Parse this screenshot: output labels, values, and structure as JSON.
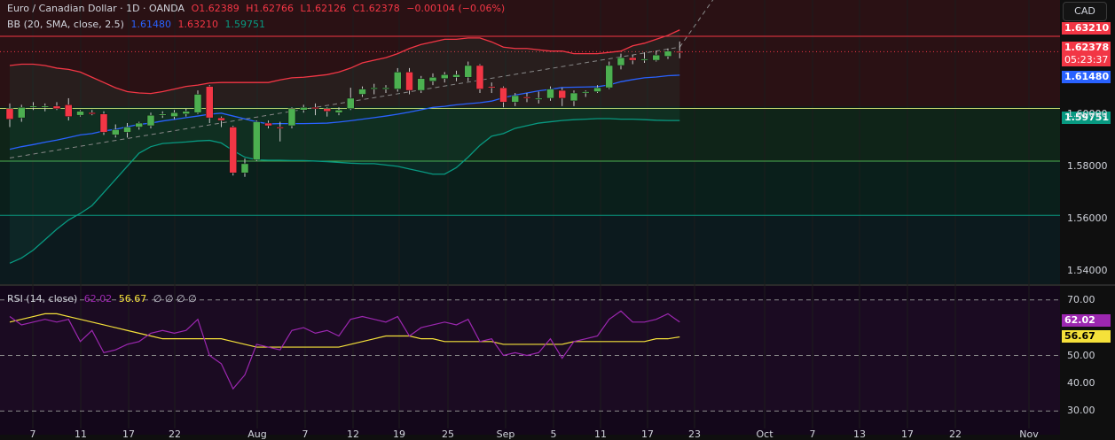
{
  "header": {
    "symbol": "Euro / Canadian Dollar · 1D · OANDA",
    "open": "O1.62389",
    "high": "H1.62766",
    "low": "L1.62126",
    "close": "C1.62378",
    "change": "−0.00104 (−0.06%)",
    "bb_label": "BB (20, SMA, close, 2.5)",
    "bb_basis": "1.61480",
    "bb_upper": "1.63210",
    "bb_lower": "1.59751",
    "rsi_label": "RSI (14, close)",
    "rsi_value": "62.02",
    "rsi_ma": "56.67",
    "rsi_extra": "∅ ∅ ∅ ∅"
  },
  "currency_button": "CAD",
  "price_tags": {
    "upper": "1.63210",
    "last": "1.62378",
    "countdown": "05:23:37",
    "basis": "1.61480",
    "lower": "1.59751",
    "rsi": "62.02",
    "rsi_ma": "56.67"
  },
  "colors": {
    "up": "#4caf50",
    "down": "#f23645",
    "bb_basis": "#2962ff",
    "bb_upper": "#f23645",
    "bb_lower": "#089981",
    "rsi": "#9c27b0",
    "rsi_ma": "#f5e13a"
  },
  "chart_data": [
    {
      "type": "candlestick",
      "title": "Euro / Canadian Dollar · 1D · OANDA",
      "y_ticks": [
        "1.60000",
        "1.58000",
        "1.56000",
        "1.54000"
      ],
      "ylim": [
        1.535,
        1.6435
      ],
      "x_labels": [
        "7",
        "11",
        "17",
        "22",
        "Aug",
        "7",
        "12",
        "19",
        "25",
        "Sep",
        "5",
        "11",
        "17",
        "23",
        "Oct",
        "7",
        "13",
        "17",
        "22",
        "Nov"
      ],
      "horizontal_lines": [
        1.6021,
        1.582,
        1.5613
      ],
      "candles": [
        {
          "o": 1.602,
          "h": 1.604,
          "l": 1.595,
          "c": 1.598
        },
        {
          "o": 1.5985,
          "h": 1.6035,
          "l": 1.597,
          "c": 1.6025
        },
        {
          "o": 1.6025,
          "h": 1.6045,
          "l": 1.6015,
          "c": 1.603
        },
        {
          "o": 1.6025,
          "h": 1.604,
          "l": 1.601,
          "c": 1.603
        },
        {
          "o": 1.603,
          "h": 1.6045,
          "l": 1.6015,
          "c": 1.602
        },
        {
          "o": 1.6035,
          "h": 1.606,
          "l": 1.5975,
          "c": 1.599
        },
        {
          "o": 1.5995,
          "h": 1.6015,
          "l": 1.599,
          "c": 1.601
        },
        {
          "o": 1.6005,
          "h": 1.6015,
          "l": 1.5995,
          "c": 1.6
        },
        {
          "o": 1.6,
          "h": 1.601,
          "l": 1.592,
          "c": 1.593
        },
        {
          "o": 1.592,
          "h": 1.596,
          "l": 1.591,
          "c": 1.594
        },
        {
          "o": 1.593,
          "h": 1.5965,
          "l": 1.591,
          "c": 1.595
        },
        {
          "o": 1.595,
          "h": 1.597,
          "l": 1.594,
          "c": 1.5965
        },
        {
          "o": 1.5955,
          "h": 1.6005,
          "l": 1.5945,
          "c": 1.5995
        },
        {
          "o": 1.5995,
          "h": 1.601,
          "l": 1.5985,
          "c": 1.6
        },
        {
          "o": 1.599,
          "h": 1.6015,
          "l": 1.598,
          "c": 1.6005
        },
        {
          "o": 1.6,
          "h": 1.602,
          "l": 1.599,
          "c": 1.601
        },
        {
          "o": 1.6005,
          "h": 1.609,
          "l": 1.6,
          "c": 1.6075
        },
        {
          "o": 1.6105,
          "h": 1.611,
          "l": 1.5965,
          "c": 1.5985
        },
        {
          "o": 1.5985,
          "h": 1.599,
          "l": 1.595,
          "c": 1.5975
        },
        {
          "o": 1.595,
          "h": 1.5955,
          "l": 1.5765,
          "c": 1.5775
        },
        {
          "o": 1.5775,
          "h": 1.583,
          "l": 1.576,
          "c": 1.581
        },
        {
          "o": 1.5825,
          "h": 1.5975,
          "l": 1.582,
          "c": 1.597
        },
        {
          "o": 1.5965,
          "h": 1.5975,
          "l": 1.5945,
          "c": 1.5955
        },
        {
          "o": 1.595,
          "h": 1.597,
          "l": 1.5895,
          "c": 1.5945
        },
        {
          "o": 1.5955,
          "h": 1.6025,
          "l": 1.5945,
          "c": 1.602
        },
        {
          "o": 1.6015,
          "h": 1.6035,
          "l": 1.6005,
          "c": 1.6025
        },
        {
          "o": 1.6025,
          "h": 1.604,
          "l": 1.5995,
          "c": 1.602
        },
        {
          "o": 1.602,
          "h": 1.6025,
          "l": 1.599,
          "c": 1.601
        },
        {
          "o": 1.6005,
          "h": 1.6025,
          "l": 1.5995,
          "c": 1.6015
        },
        {
          "o": 1.602,
          "h": 1.61,
          "l": 1.6015,
          "c": 1.606
        },
        {
          "o": 1.6075,
          "h": 1.6105,
          "l": 1.6065,
          "c": 1.6095
        },
        {
          "o": 1.6095,
          "h": 1.6115,
          "l": 1.6075,
          "c": 1.61
        },
        {
          "o": 1.6095,
          "h": 1.611,
          "l": 1.608,
          "c": 1.61
        },
        {
          "o": 1.6095,
          "h": 1.6175,
          "l": 1.6085,
          "c": 1.616
        },
        {
          "o": 1.616,
          "h": 1.6175,
          "l": 1.6075,
          "c": 1.609
        },
        {
          "o": 1.609,
          "h": 1.6145,
          "l": 1.608,
          "c": 1.6135
        },
        {
          "o": 1.6125,
          "h": 1.6155,
          "l": 1.611,
          "c": 1.614
        },
        {
          "o": 1.6135,
          "h": 1.616,
          "l": 1.612,
          "c": 1.615
        },
        {
          "o": 1.614,
          "h": 1.6165,
          "l": 1.6125,
          "c": 1.615
        },
        {
          "o": 1.614,
          "h": 1.62,
          "l": 1.6125,
          "c": 1.6185
        },
        {
          "o": 1.6185,
          "h": 1.619,
          "l": 1.608,
          "c": 1.6095
        },
        {
          "o": 1.6105,
          "h": 1.612,
          "l": 1.608,
          "c": 1.61
        },
        {
          "o": 1.61,
          "h": 1.6105,
          "l": 1.6025,
          "c": 1.6045
        },
        {
          "o": 1.6045,
          "h": 1.608,
          "l": 1.603,
          "c": 1.607
        },
        {
          "o": 1.6065,
          "h": 1.608,
          "l": 1.6045,
          "c": 1.606
        },
        {
          "o": 1.6055,
          "h": 1.6085,
          "l": 1.604,
          "c": 1.606
        },
        {
          "o": 1.606,
          "h": 1.6105,
          "l": 1.605,
          "c": 1.6095
        },
        {
          "o": 1.609,
          "h": 1.61,
          "l": 1.603,
          "c": 1.606
        },
        {
          "o": 1.605,
          "h": 1.609,
          "l": 1.603,
          "c": 1.608
        },
        {
          "o": 1.608,
          "h": 1.609,
          "l": 1.6065,
          "c": 1.6085
        },
        {
          "o": 1.6085,
          "h": 1.611,
          "l": 1.608,
          "c": 1.61
        },
        {
          "o": 1.61,
          "h": 1.62,
          "l": 1.6095,
          "c": 1.6185
        },
        {
          "o": 1.6185,
          "h": 1.623,
          "l": 1.617,
          "c": 1.6215
        },
        {
          "o": 1.6215,
          "h": 1.6225,
          "l": 1.619,
          "c": 1.6205
        },
        {
          "o": 1.6205,
          "h": 1.6235,
          "l": 1.6195,
          "c": 1.621
        },
        {
          "o": 1.6205,
          "h": 1.624,
          "l": 1.62,
          "c": 1.6225
        },
        {
          "o": 1.622,
          "h": 1.625,
          "l": 1.621,
          "c": 1.624
        },
        {
          "o": 1.62389,
          "h": 1.62766,
          "l": 1.62126,
          "c": 1.62378
        }
      ],
      "series": [
        {
          "name": "Basis",
          "values": [
            1.5865,
            1.5875,
            1.5883,
            1.5892,
            1.59,
            1.591,
            1.592,
            1.5925,
            1.5935,
            1.5941,
            1.5951,
            1.596,
            1.5965,
            1.5973,
            1.5979,
            1.5986,
            1.5992,
            1.5999,
            1.6003,
            1.5992,
            1.5981,
            1.597,
            1.5962,
            1.5963,
            1.5963,
            1.5963,
            1.5964,
            1.5965,
            1.5969,
            1.5974,
            1.598,
            1.5986,
            1.5992,
            1.5999,
            1.6007,
            1.6016,
            1.6025,
            1.6029,
            1.6035,
            1.6039,
            1.6043,
            1.6049,
            1.6062,
            1.6072,
            1.608,
            1.6088,
            1.6094,
            1.6101,
            1.6102,
            1.6103,
            1.6104,
            1.6111,
            1.6123,
            1.6131,
            1.6138,
            1.6141,
            1.6146,
            1.6148
          ]
        },
        {
          "name": "Upper",
          "values": [
            1.6185,
            1.619,
            1.619,
            1.6185,
            1.6175,
            1.617,
            1.616,
            1.614,
            1.612,
            1.61,
            1.6085,
            1.608,
            1.6078,
            1.6085,
            1.6095,
            1.6105,
            1.611,
            1.6118,
            1.612,
            1.612,
            1.612,
            1.612,
            1.612,
            1.613,
            1.6138,
            1.614,
            1.6145,
            1.615,
            1.616,
            1.6175,
            1.6195,
            1.6205,
            1.6215,
            1.623,
            1.625,
            1.6265,
            1.6275,
            1.6285,
            1.6285,
            1.629,
            1.629,
            1.6275,
            1.6255,
            1.625,
            1.625,
            1.6245,
            1.624,
            1.624,
            1.623,
            1.623,
            1.623,
            1.6235,
            1.624,
            1.626,
            1.627,
            1.6285,
            1.63,
            1.6321
          ]
        },
        {
          "name": "Lower",
          "values": [
            1.543,
            1.545,
            1.548,
            1.552,
            1.556,
            1.5595,
            1.562,
            1.565,
            1.57,
            1.575,
            1.58,
            1.585,
            1.5875,
            1.5887,
            1.589,
            1.5893,
            1.5897,
            1.5899,
            1.5889,
            1.586,
            1.5835,
            1.5825,
            1.5823,
            1.5823,
            1.5822,
            1.5822,
            1.582,
            1.5818,
            1.5815,
            1.5812,
            1.581,
            1.581,
            1.5805,
            1.58,
            1.579,
            1.578,
            1.577,
            1.577,
            1.5795,
            1.5835,
            1.588,
            1.5915,
            1.5925,
            1.5945,
            1.5955,
            1.5965,
            1.597,
            1.5975,
            1.5978,
            1.598,
            1.5982,
            1.5982,
            1.598,
            1.598,
            1.5978,
            1.5976,
            1.5975,
            1.5975
          ]
        }
      ],
      "trendline": [
        [
          1.5832,
          1.6255
        ],
        [
          0,
          57
        ],
        [
          57,
          1.6255
        ]
      ]
    },
    {
      "type": "line",
      "title": "RSI (14, close)",
      "y_ticks": [
        "70.00",
        "50.00",
        "40.00",
        "30.00"
      ],
      "ylim": [
        25,
        75
      ],
      "levels": [
        70,
        50,
        30
      ],
      "series": [
        {
          "name": "RSI",
          "values": [
            64,
            61,
            62,
            63,
            62,
            63,
            55,
            59,
            51,
            52,
            54,
            55,
            58,
            59,
            58,
            59,
            63,
            50,
            47,
            38,
            43,
            54,
            53,
            52,
            59,
            60,
            58,
            59,
            57,
            63,
            64,
            63,
            62,
            64,
            57,
            60,
            61,
            62,
            61,
            63,
            55,
            56,
            50,
            51,
            50,
            51,
            56,
            49,
            55,
            56,
            57,
            63,
            66,
            62,
            62,
            63,
            65,
            62.02
          ]
        },
        {
          "name": "RSI-based MA",
          "values": [
            62,
            63,
            64,
            65,
            65,
            64,
            63,
            62,
            61,
            60,
            59,
            58,
            57,
            56,
            56,
            56,
            56,
            56,
            56,
            55,
            54,
            53,
            53,
            53,
            53,
            53,
            53,
            53,
            53,
            54,
            55,
            56,
            57,
            57,
            57,
            56,
            56,
            55,
            55,
            55,
            55,
            55,
            54,
            54,
            54,
            54,
            54,
            54,
            55,
            55,
            55,
            55,
            55,
            55,
            55,
            56,
            56,
            56.67
          ]
        }
      ]
    }
  ]
}
